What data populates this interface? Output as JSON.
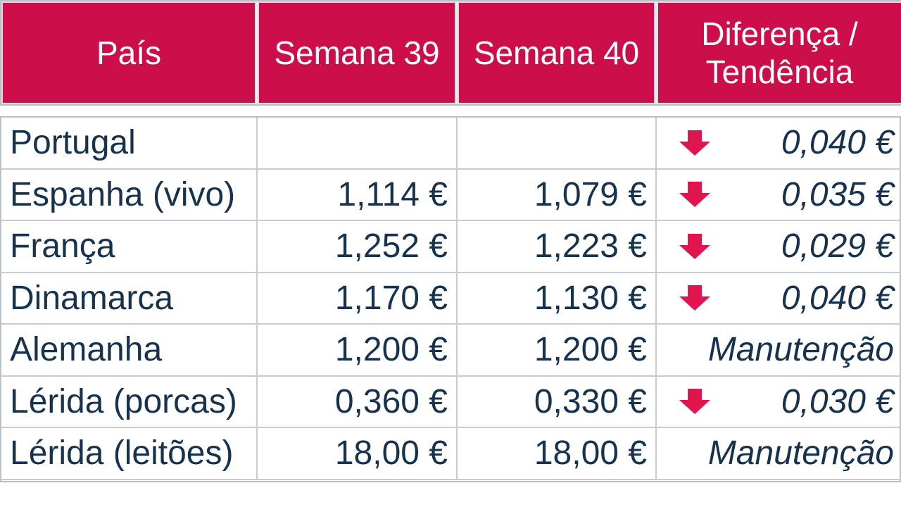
{
  "header": {
    "col1": "País",
    "col2": "Semana 39",
    "col3": "Semana 40",
    "col4": "Diferença / Tendência"
  },
  "rows": [
    {
      "country": "Portugal",
      "w39": "",
      "w40": "",
      "trend": "down",
      "diff": "0,040 €"
    },
    {
      "country": "Espanha (vivo)",
      "w39": "1,114 €",
      "w40": "1,079 €",
      "trend": "down",
      "diff": "0,035 €"
    },
    {
      "country": "França",
      "w39": "1,252 €",
      "w40": "1,223 €",
      "trend": "down",
      "diff": "0,029 €"
    },
    {
      "country": "Dinamarca",
      "w39": "1,170 €",
      "w40": "1,130 €",
      "trend": "down",
      "diff": "0,040 €"
    },
    {
      "country": "Alemanha",
      "w39": "1,200 €",
      "w40": "1,200 €",
      "trend": "none",
      "diff": "Manutenção"
    },
    {
      "country": "Lérida (porcas)",
      "w39": "0,360 €",
      "w40": "0,330 €",
      "trend": "down",
      "diff": "0,030 €"
    },
    {
      "country": "Lérida (leitões)",
      "w39": "18,00 €",
      "w40": "18,00 €",
      "trend": "none",
      "diff": "Manutenção"
    }
  ],
  "colors": {
    "header_bg": "#cc0e4b",
    "text": "#17324c",
    "arrow": "#e0154d"
  },
  "icons": {
    "down": "arrow-down-icon"
  }
}
